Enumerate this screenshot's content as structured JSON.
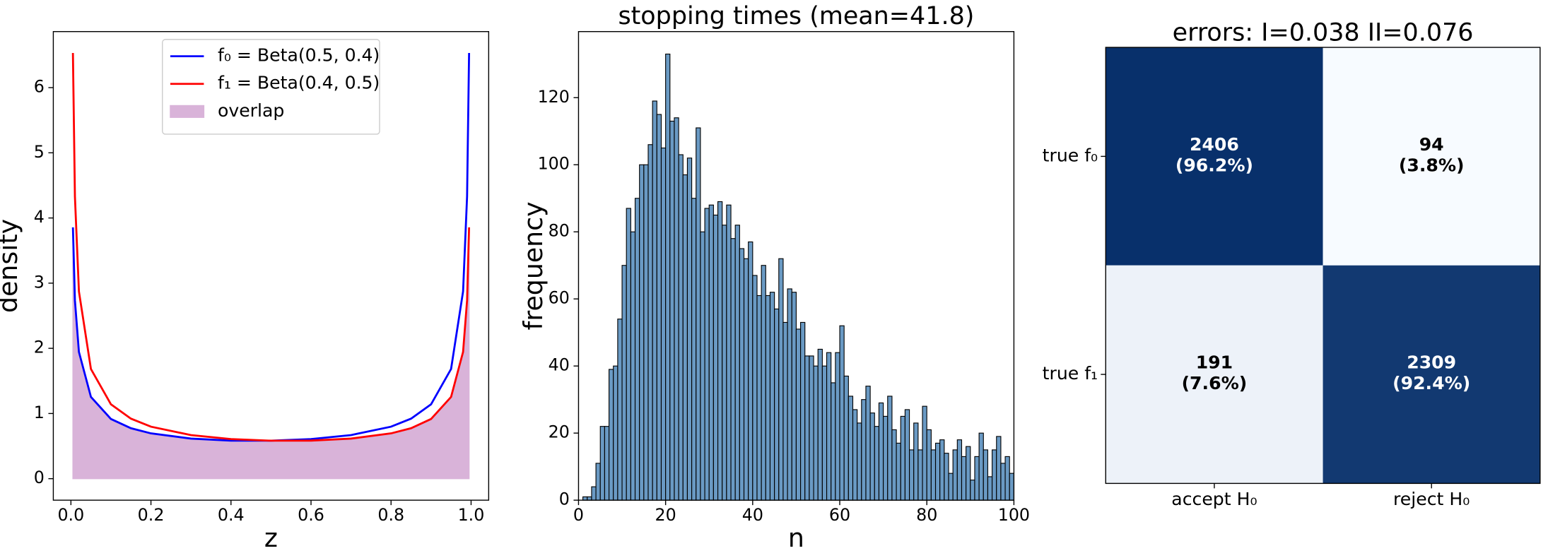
{
  "chart_data": [
    {
      "type": "line",
      "xlabel": "z",
      "ylabel": "density",
      "x": [
        0.005,
        0.01,
        0.02,
        0.05,
        0.1,
        0.15,
        0.2,
        0.3,
        0.4,
        0.5,
        0.6,
        0.7,
        0.8,
        0.85,
        0.9,
        0.95,
        0.98,
        0.99,
        0.995
      ],
      "series": [
        {
          "name": "f₀ = Beta(0.5, 0.4)",
          "color": "#0000ff",
          "values": [
            3.856,
            2.735,
            1.945,
            1.254,
            0.916,
            0.774,
            0.695,
            0.615,
            0.584,
            0.583,
            0.608,
            0.669,
            0.798,
            0.921,
            1.141,
            1.683,
            2.873,
            4.33,
            6.532
          ]
        },
        {
          "name": "f₁ = Beta(0.4, 0.5)",
          "color": "#ff0000",
          "values": [
            6.532,
            4.33,
            2.873,
            1.683,
            1.141,
            0.921,
            0.798,
            0.669,
            0.608,
            0.583,
            0.584,
            0.615,
            0.695,
            0.774,
            0.916,
            1.254,
            1.945,
            2.735,
            3.856
          ]
        },
        {
          "name": "overlap",
          "color": "#d9b3d9",
          "area": true,
          "values": [
            3.856,
            2.735,
            1.945,
            1.254,
            0.916,
            0.774,
            0.695,
            0.615,
            0.584,
            0.583,
            0.584,
            0.615,
            0.695,
            0.774,
            0.916,
            1.254,
            1.945,
            2.735,
            3.856
          ]
        }
      ],
      "xlim": [
        -0.044,
        1.044
      ],
      "xticks": [
        {
          "value": 0,
          "label": "0.0"
        },
        {
          "value": 0.2,
          "label": "0.2"
        },
        {
          "value": 0.4,
          "label": "0.4"
        },
        {
          "value": 0.6,
          "label": "0.6"
        },
        {
          "value": 0.8,
          "label": "0.8"
        },
        {
          "value": 1,
          "label": "1.0"
        }
      ],
      "ylim": [
        -0.33,
        6.86
      ],
      "yticks": [
        0,
        1,
        2,
        3,
        4,
        5,
        6
      ],
      "legend": "upper center"
    },
    {
      "type": "histogram",
      "title": "stopping times (mean=41.8)",
      "xlabel": "n",
      "ylabel": "frequency",
      "color": "#6a9ac4",
      "edgecolor": "#000000",
      "bins": [
        1,
        2,
        3,
        4,
        5,
        6,
        7,
        8,
        9,
        10,
        11,
        12,
        13,
        14,
        15,
        16,
        17,
        18,
        19,
        20,
        21,
        22,
        23,
        24,
        25,
        26,
        27,
        28,
        29,
        30,
        31,
        32,
        33,
        34,
        35,
        36,
        37,
        38,
        39,
        40,
        41,
        42,
        43,
        44,
        45,
        46,
        47,
        48,
        49,
        50,
        51,
        52,
        53,
        54,
        55,
        56,
        57,
        58,
        59,
        60,
        61,
        62,
        63,
        64,
        65,
        66,
        67,
        68,
        69,
        70,
        71,
        72,
        73,
        74,
        75,
        76,
        77,
        78,
        79,
        80,
        81,
        82,
        83,
        84,
        85,
        86,
        87,
        88,
        89,
        90,
        91,
        92,
        93,
        94,
        95,
        96,
        97,
        98,
        99,
        100
      ],
      "values": [
        1,
        1,
        4,
        11,
        22,
        22,
        39,
        40,
        54,
        70,
        87,
        80,
        90,
        100,
        100,
        106,
        119,
        115,
        105,
        133,
        113,
        114,
        103,
        97,
        102,
        90,
        111,
        80,
        87,
        88,
        85,
        89,
        82,
        88,
        78,
        82,
        75,
        72,
        77,
        67,
        61,
        70,
        61,
        62,
        57,
        72,
        53,
        63,
        62,
        51,
        53,
        43,
        43,
        40,
        45,
        40,
        44,
        35,
        44,
        52,
        37,
        31,
        27,
        23,
        30,
        34,
        26,
        22,
        29,
        25,
        31,
        21,
        17,
        25,
        27,
        15,
        23,
        15,
        28,
        21,
        15,
        17,
        18,
        14,
        8,
        15,
        18,
        13,
        16,
        6,
        13,
        20,
        15,
        7,
        15,
        19,
        11,
        13,
        8
      ],
      "xlim": [
        0,
        100
      ],
      "xticks": [
        0,
        20,
        40,
        60,
        80,
        100
      ],
      "ylim": [
        0,
        139.7
      ],
      "yticks": [
        0,
        20,
        40,
        60,
        80,
        100,
        120
      ]
    },
    {
      "type": "heatmap",
      "title": "errors: I=0.038 II=0.076",
      "rows": [
        "true f₀",
        "true f₁"
      ],
      "columns": [
        "accept H₀",
        "reject H₀"
      ],
      "values": [
        [
          2406,
          94
        ],
        [
          191,
          2309
        ]
      ],
      "percents": [
        [
          96.2,
          3.8
        ],
        [
          7.6,
          92.4
        ]
      ],
      "percent_labels": [
        [
          "(96.2%)",
          "(3.8%)"
        ],
        [
          "(7.6%)",
          "(92.4%)"
        ]
      ],
      "cmap": [
        "#f7fbff",
        "#08306b"
      ]
    }
  ]
}
